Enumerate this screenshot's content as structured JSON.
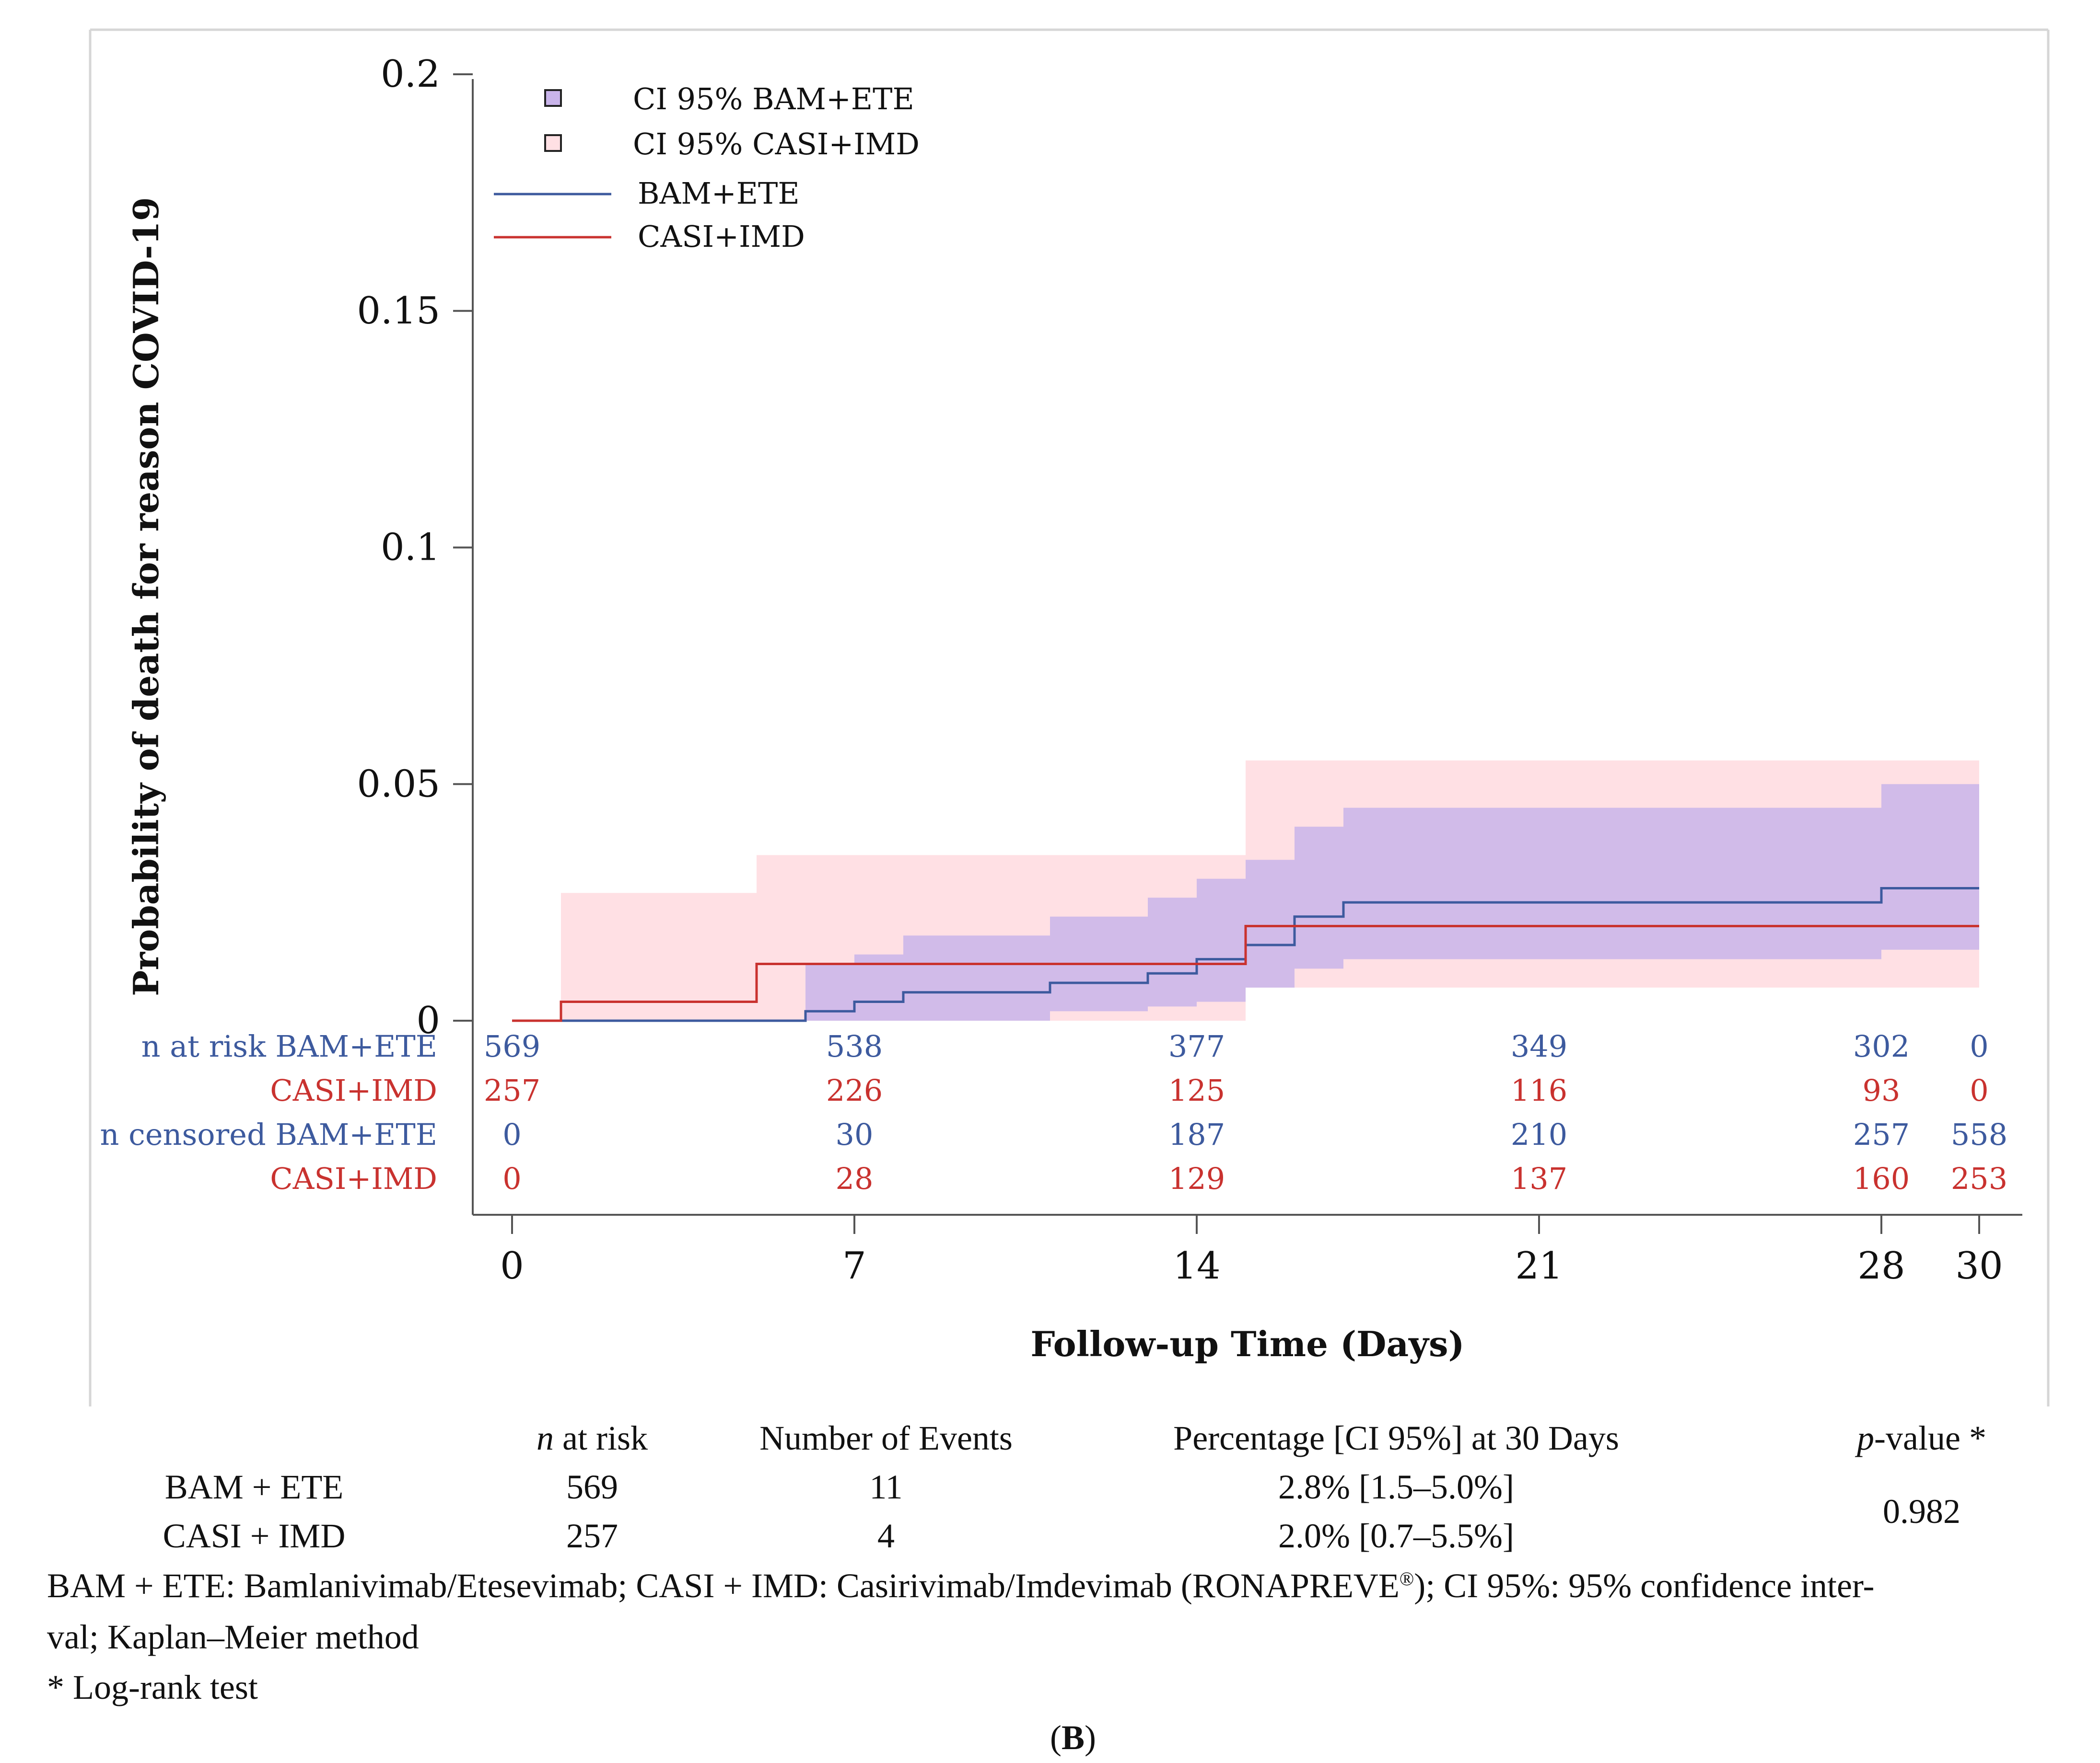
{
  "chart_data": {
    "type": "line",
    "subtype": "kaplan-meier step plot with 95% confidence bands",
    "ylabel": "Probability of death for reason COVID-19",
    "xlabel": "Follow-up Time (Days)",
    "xlim": [
      0,
      30
    ],
    "ylim": [
      0,
      0.2
    ],
    "x_ticks": [
      0,
      7,
      14,
      21,
      28,
      30
    ],
    "y_ticks": [
      0,
      0.05,
      0.1,
      0.15,
      0.2
    ],
    "y_tick_labels": [
      "0",
      "0.05",
      "0.1",
      "0.15",
      "0.2"
    ],
    "legend": [
      "CI 95% BAM+ETE",
      "CI 95% CASI+IMD",
      "BAM+ETE",
      "CASI+IMD"
    ],
    "legend_position": "top-left",
    "series": [
      {
        "name": "BAM+ETE",
        "color": "#3d5a9e",
        "band_color": "#c9b4ea",
        "steps": [
          [
            0,
            0
          ],
          [
            6,
            0.002
          ],
          [
            7,
            0.004
          ],
          [
            8,
            0.006
          ],
          [
            11,
            0.008
          ],
          [
            13,
            0.01
          ],
          [
            14,
            0.013
          ],
          [
            15,
            0.016
          ],
          [
            16,
            0.022
          ],
          [
            17,
            0.025
          ],
          [
            28,
            0.028
          ],
          [
            30,
            0.028
          ]
        ],
        "ci_steps": [
          [
            6,
            0.0,
            0.012
          ],
          [
            7,
            0.0,
            0.014
          ],
          [
            8,
            0.0,
            0.018
          ],
          [
            11,
            0.002,
            0.022
          ],
          [
            13,
            0.003,
            0.026
          ],
          [
            14,
            0.004,
            0.03
          ],
          [
            15,
            0.007,
            0.034
          ],
          [
            16,
            0.011,
            0.041
          ],
          [
            17,
            0.013,
            0.045
          ],
          [
            28,
            0.015,
            0.05
          ],
          [
            30,
            0.015,
            0.05
          ]
        ]
      },
      {
        "name": "CASI+IMD",
        "color": "#c9322f",
        "band_color": "#ffe0e4",
        "steps": [
          [
            0,
            0
          ],
          [
            1,
            0.004
          ],
          [
            5,
            0.012
          ],
          [
            15,
            0.02
          ],
          [
            30,
            0.02
          ]
        ],
        "ci_steps": [
          [
            1,
            0.0,
            0.027
          ],
          [
            5,
            0.0,
            0.035
          ],
          [
            15,
            0.007,
            0.055
          ],
          [
            30,
            0.007,
            0.055
          ]
        ]
      }
    ],
    "risk_table": {
      "rows": [
        {
          "label": "n at risk BAM+ETE",
          "group": "BAM+ETE",
          "values": [
            "569",
            "538",
            "377",
            "349",
            "302",
            "0"
          ]
        },
        {
          "label": "CASI+IMD",
          "group": "CASI+IMD",
          "values": [
            "257",
            "226",
            "125",
            "116",
            "93",
            "0"
          ]
        },
        {
          "label": "n censored BAM+ETE",
          "group": "BAM+ETE",
          "values": [
            "0",
            "30",
            "187",
            "210",
            "257",
            "558"
          ]
        },
        {
          "label": "CASI+IMD",
          "group": "CASI+IMD",
          "values": [
            "0",
            "28",
            "129",
            "137",
            "160",
            "253"
          ]
        }
      ]
    }
  },
  "summary_table": {
    "headers": {
      "n_prefix": "n",
      "n_suffix": " at risk",
      "events": "Number of Events",
      "pct": "Percentage [CI 95%] at 30 Days",
      "p_prefix": "p",
      "p_suffix": "-value *"
    },
    "rows": [
      {
        "group": "BAM + ETE",
        "n": "569",
        "events": "11",
        "pct": "2.8% [1.5–5.0%]"
      },
      {
        "group": "CASI + IMD",
        "n": "257",
        "events": "4",
        "pct": "2.0% [0.7–5.5%]"
      }
    ],
    "p_value": "0.982"
  },
  "footnotes": {
    "line1a": "BAM + ETE: Bamlanivimab/Etesevimab; CASI + IMD: Casirivimab/Imdevimab (RONAPREVE",
    "registered": "®",
    "line1b": "); CI 95%: 95% confidence inter-",
    "line2": "val; Kaplan–Meier method",
    "line3": "* Log-rank test"
  },
  "panel_label": {
    "open": "(",
    "letter": "B",
    "close": ")"
  }
}
